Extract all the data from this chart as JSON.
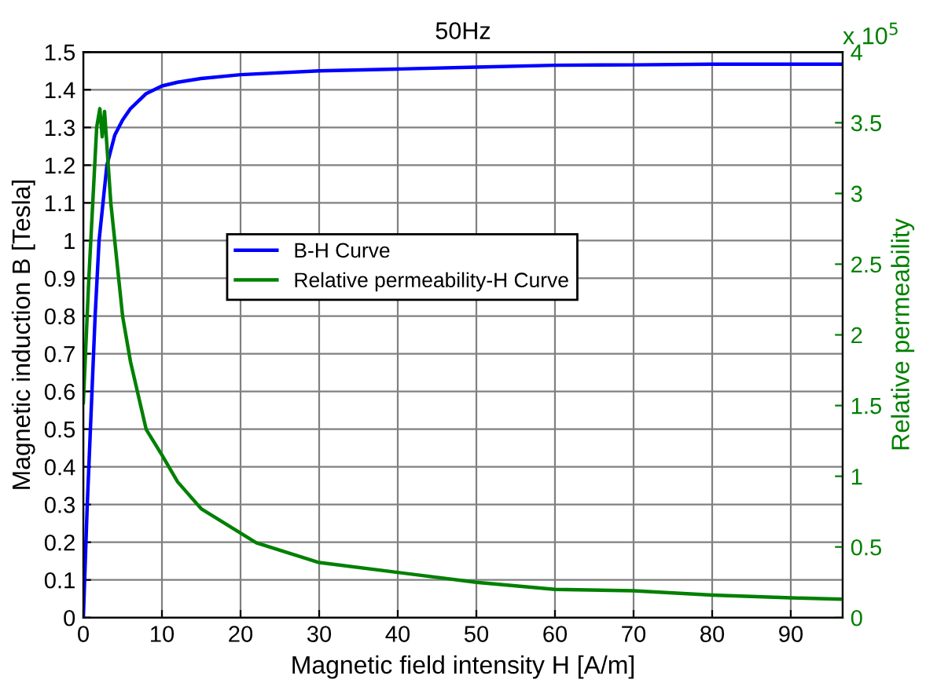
{
  "chart_data": {
    "type": "line",
    "title": "50Hz",
    "xlabel": "Magnetic field intensity H [A/m]",
    "ylabel": "Magnetic induction B [Tesla]",
    "y2label": "Relative permeability",
    "annotations": [
      "x 10$^{5}$"
    ],
    "xlim": [
      0,
      96.6
    ],
    "xticks": [
      0,
      10,
      20,
      30,
      40,
      50,
      60,
      70,
      80,
      90
    ],
    "ylim": [
      0,
      1.5
    ],
    "yticks": [
      0,
      0.1,
      0.2,
      0.3,
      0.4,
      0.5,
      0.6,
      0.7,
      0.8,
      0.9,
      1,
      1.1,
      1.2,
      1.3,
      1.4,
      1.5
    ],
    "y2lim": [
      0,
      4
    ],
    "y2ticks": [
      0,
      0.5,
      1,
      1.5,
      2,
      2.5,
      3,
      3.5,
      4
    ],
    "grid": true,
    "legend": "center",
    "marker": "none",
    "line_style": "solid",
    "series": [
      {
        "name": "B-H Curve",
        "color": "#0000ff",
        "x": [
          0,
          0.5,
          1,
          1.5,
          2,
          2.5,
          3,
          4,
          5,
          6,
          8,
          10,
          12,
          15,
          20,
          30,
          40,
          50,
          60,
          70,
          80,
          96.6
        ],
        "values": [
          0,
          0.3,
          0.55,
          0.8,
          1.0,
          1.1,
          1.2,
          1.28,
          1.32,
          1.35,
          1.39,
          1.41,
          1.42,
          1.43,
          1.44,
          1.45,
          1.455,
          1.46,
          1.465,
          1.466,
          1.468,
          1.468
        ]
      },
      {
        "name": "Relative permeability-H Curve",
        "color": "#008000",
        "axis": "y2",
        "x": [
          0,
          0.7,
          1.7,
          2.1,
          2.4,
          2.7,
          3.5,
          5,
          6,
          7,
          8,
          10,
          12,
          15,
          22,
          30,
          40,
          50,
          60,
          70,
          80,
          90,
          96.6
        ],
        "values": [
          1.52,
          2.4,
          3.47,
          3.6,
          3.4,
          3.58,
          2.93,
          2.13,
          1.81,
          1.57,
          1.33,
          1.15,
          0.96,
          0.77,
          0.53,
          0.39,
          0.32,
          0.25,
          0.2,
          0.19,
          0.16,
          0.14,
          0.13
        ]
      }
    ]
  }
}
